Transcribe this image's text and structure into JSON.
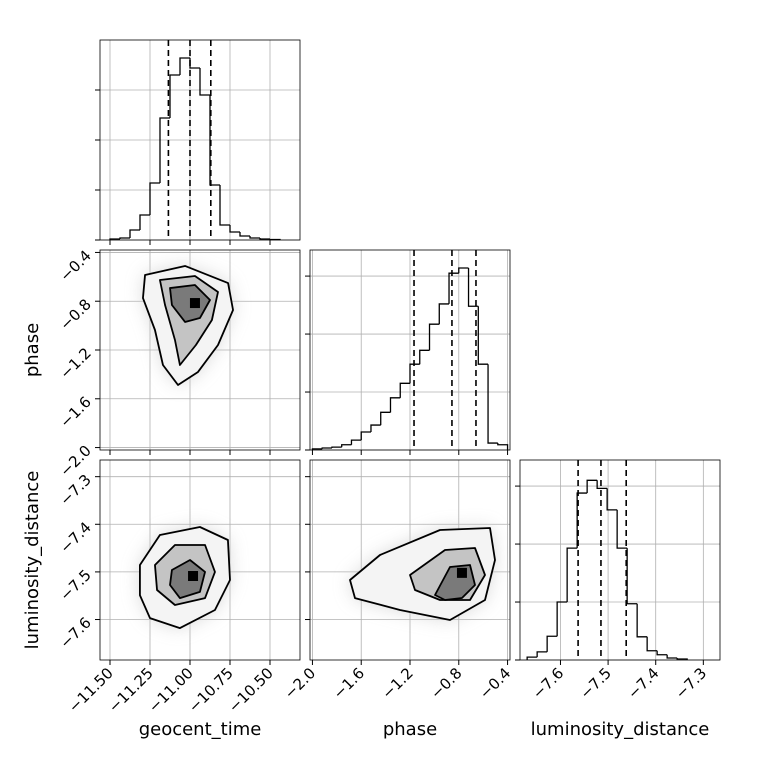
{
  "chart_data": {
    "type": "corner",
    "parameters": [
      {
        "name": "geocent_time",
        "lim": [
          -11.5625,
          -10.3125
        ],
        "ticks": [
          {
            "value": -11.5,
            "label": "−11.50"
          },
          {
            "value": -11.25,
            "label": "−11.25"
          },
          {
            "value": -11,
            "label": "−11.00"
          },
          {
            "value": -10.75,
            "label": "−10.75"
          },
          {
            "value": -10.5,
            "label": "−10.50"
          }
        ],
        "bins": [
          -11.5,
          -11.4375,
          -11.375,
          -11.3125,
          -11.25,
          -11.1875,
          -11.125,
          -11.0625,
          -11,
          -10.9375,
          -10.875,
          -10.8125,
          -10.75,
          -10.6875,
          -10.625,
          -10.5625,
          -10.5,
          -10.4375
        ],
        "counts": [
          20,
          40,
          200,
          500,
          1140,
          2440,
          3300,
          3640,
          3440,
          2900,
          1100,
          300,
          160,
          80,
          40,
          20,
          10
        ],
        "hist_ylim": [
          0,
          4000
        ],
        "hist_yticks": [
          0,
          1000,
          2000,
          3000
        ],
        "quantiles": [
          -11.135,
          -11.0,
          -10.87
        ]
      },
      {
        "name": "phase",
        "lim": [
          -2.02,
          -0.38
        ],
        "ticks": [
          {
            "value": -2.0,
            "label": "−2.0"
          },
          {
            "value": -1.6,
            "label": "−1.6"
          },
          {
            "value": -1.2,
            "label": "−1.2"
          },
          {
            "value": -0.8,
            "label": "−0.8"
          },
          {
            "value": -0.4,
            "label": "−0.4"
          }
        ],
        "bins": [
          -2.0,
          -1.92,
          -1.84,
          -1.76,
          -1.68,
          -1.6,
          -1.52,
          -1.44,
          -1.36,
          -1.28,
          -1.2,
          -1.12,
          -1.04,
          -0.96,
          -0.88,
          -0.8,
          -0.72,
          -0.64,
          -0.56,
          -0.48,
          -0.4
        ],
        "counts": [
          20,
          35,
          50,
          90,
          170,
          310,
          430,
          650,
          900,
          1150,
          1480,
          1720,
          2170,
          2520,
          3050,
          3140,
          2480,
          1480,
          120,
          90
        ],
        "hist_ylim": [
          0,
          3450
        ],
        "hist_yticks": [
          0,
          1000,
          2000,
          3000
        ],
        "quantiles": [
          -1.167,
          -0.856,
          -0.659
        ]
      },
      {
        "name": "luminosity_distance",
        "lim": [
          -7.685,
          -7.265
        ],
        "ticks": [
          {
            "value": -7.6,
            "label": "−7.6"
          },
          {
            "value": -7.5,
            "label": "−7.5"
          },
          {
            "value": -7.4,
            "label": "−7.4"
          },
          {
            "value": -7.3,
            "label": "−7.3"
          }
        ],
        "bins": [
          -7.67,
          -7.649,
          -7.628,
          -7.607,
          -7.586,
          -7.565,
          -7.544,
          -7.523,
          -7.502,
          -7.481,
          -7.46,
          -7.439,
          -7.418,
          -7.397,
          -7.376,
          -7.355,
          -7.334
        ],
        "counts": [
          50,
          140,
          410,
          1000,
          1930,
          2880,
          3100,
          2960,
          2590,
          1930,
          970,
          400,
          160,
          90,
          35,
          17
        ],
        "hist_ylim": [
          0,
          3450
        ],
        "hist_yticks": [
          0,
          1000,
          2000,
          3000
        ],
        "quantiles": [
          -7.563,
          -7.515,
          -7.462
        ]
      }
    ],
    "pairs": [
      {
        "x": 0,
        "y": 1,
        "contours": [
          {
            "x": [
              -11.281,
              -11.031,
              -10.762,
              -10.731,
              -10.825,
              -10.95,
              -11.075,
              -11.169,
              -11.219,
              -11.294
            ],
            "y": [
              -0.585,
              -0.511,
              -0.651,
              -0.872,
              -1.159,
              -1.38,
              -1.487,
              -1.323,
              -1.036,
              -0.774
            ]
          },
          {
            "x": [
              -11.188,
              -10.969,
              -10.825,
              -10.863,
              -10.963,
              -11.063,
              -11.094,
              -11.156
            ],
            "y": [
              -0.626,
              -0.593,
              -0.724,
              -0.954,
              -1.159,
              -1.323,
              -1.118,
              -0.831
            ]
          },
          {
            "x": [
              -11.125,
              -10.969,
              -10.875,
              -10.938,
              -11.031,
              -11.113
            ],
            "y": [
              -0.692,
              -0.667,
              -0.79,
              -0.938,
              -0.97,
              -0.831
            ]
          }
        ],
        "peak": [
          -10.969,
          -0.815
        ]
      },
      {
        "x": 0,
        "y": 2,
        "contours": [
          {
            "x": [
              -11.313,
              -11.188,
              -10.938,
              -10.763,
              -10.75,
              -10.844,
              -11.063,
              -11.25,
              -11.313
            ],
            "y": [
              -7.4855,
              -7.4225,
              -7.4057,
              -7.433,
              -7.517,
              -7.58,
              -7.618,
              -7.597,
              -7.549
            ]
          },
          {
            "x": [
              -11.219,
              -11.094,
              -10.906,
              -10.844,
              -10.906,
              -11.094,
              -11.206
            ],
            "y": [
              -7.4855,
              -7.4435,
              -7.4435,
              -7.5,
              -7.555,
              -7.5695,
              -7.538
            ]
          },
          {
            "x": [
              -11.113,
              -11.0,
              -10.906,
              -10.938,
              -11.063,
              -11.125
            ],
            "y": [
              -7.496,
              -7.475,
              -7.5,
              -7.542,
              -7.555,
              -7.5275
            ]
          }
        ],
        "peak": [
          -10.981,
          -7.5086
        ]
      },
      {
        "x": 1,
        "y": 2,
        "contours": [
          {
            "x": [
              -1.692,
              -1.446,
              -0.954,
              -0.544,
              -0.503,
              -0.585,
              -0.872,
              -1.282,
              -1.651
            ],
            "y": [
              -7.517,
              -7.4645,
              -7.412,
              -7.4078,
              -7.475,
              -7.559,
              -7.601,
              -7.58,
              -7.555
            ]
          },
          {
            "x": [
              -1.2,
              -0.913,
              -0.667,
              -0.585,
              -0.708,
              -0.954,
              -1.159
            ],
            "y": [
              -7.5065,
              -7.454,
              -7.4498,
              -7.5065,
              -7.559,
              -7.559,
              -7.538
            ]
          },
          {
            "x": [
              -0.995,
              -0.872,
              -0.708,
              -0.667,
              -0.774,
              -0.913
            ],
            "y": [
              -7.5485,
              -7.4897,
              -7.4855,
              -7.5275,
              -7.5548,
              -7.559
            ]
          }
        ],
        "peak": [
          -0.774,
          -7.502
        ]
      }
    ]
  }
}
